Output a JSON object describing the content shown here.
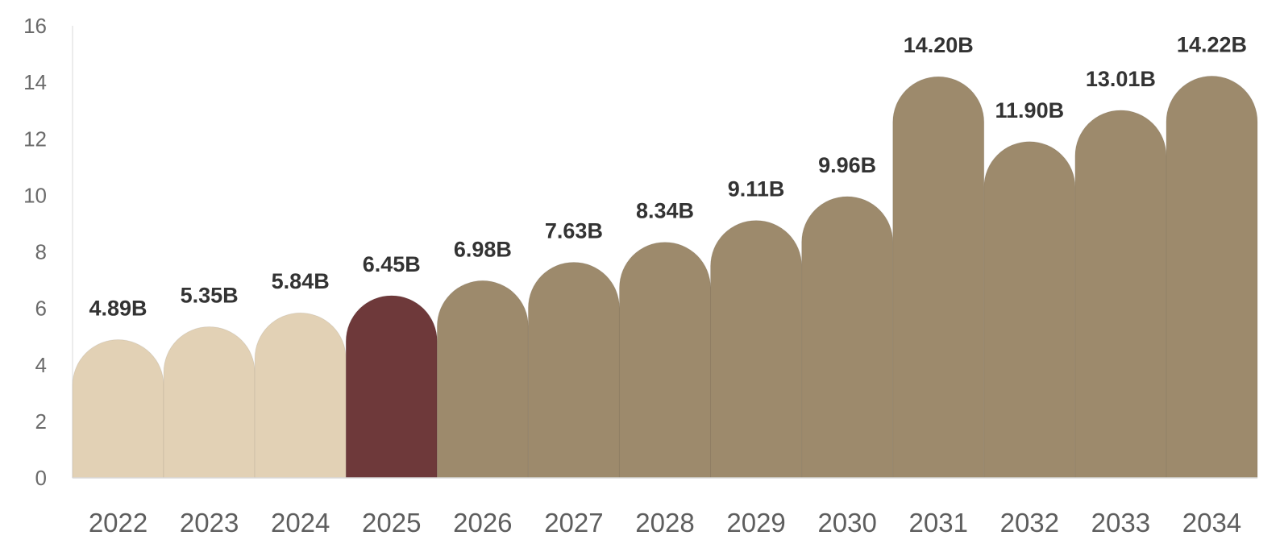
{
  "chart_data": {
    "type": "bar",
    "categories": [
      "2022",
      "2023",
      "2024",
      "2025",
      "2026",
      "2027",
      "2028",
      "2029",
      "2030",
      "2031",
      "2032",
      "2033",
      "2034"
    ],
    "values": [
      4.89,
      5.35,
      5.84,
      6.45,
      6.98,
      7.63,
      8.34,
      9.11,
      9.96,
      14.2,
      11.9,
      13.01,
      14.22
    ],
    "data_labels": [
      "4.89B",
      "5.35B",
      "5.84B",
      "6.45B",
      "6.98B",
      "7.63B",
      "8.34B",
      "9.11B",
      "9.96B",
      "14.20B",
      "11.90B",
      "13.01B",
      "14.22B"
    ],
    "ylim": [
      0,
      16
    ],
    "y_ticks": [
      "0",
      "2",
      "4",
      "6",
      "8",
      "10",
      "12",
      "14",
      "16"
    ],
    "title": "",
    "xlabel": "",
    "ylabel": "",
    "grid": false,
    "legend": "none",
    "colors": {
      "historical": "#e2d1b5",
      "current": "#6e393a",
      "forecast": "#9d8a6c"
    },
    "bar_color_groups": [
      "historical",
      "historical",
      "historical",
      "current",
      "forecast",
      "forecast",
      "forecast",
      "forecast",
      "forecast",
      "forecast",
      "forecast",
      "forecast",
      "forecast"
    ]
  }
}
